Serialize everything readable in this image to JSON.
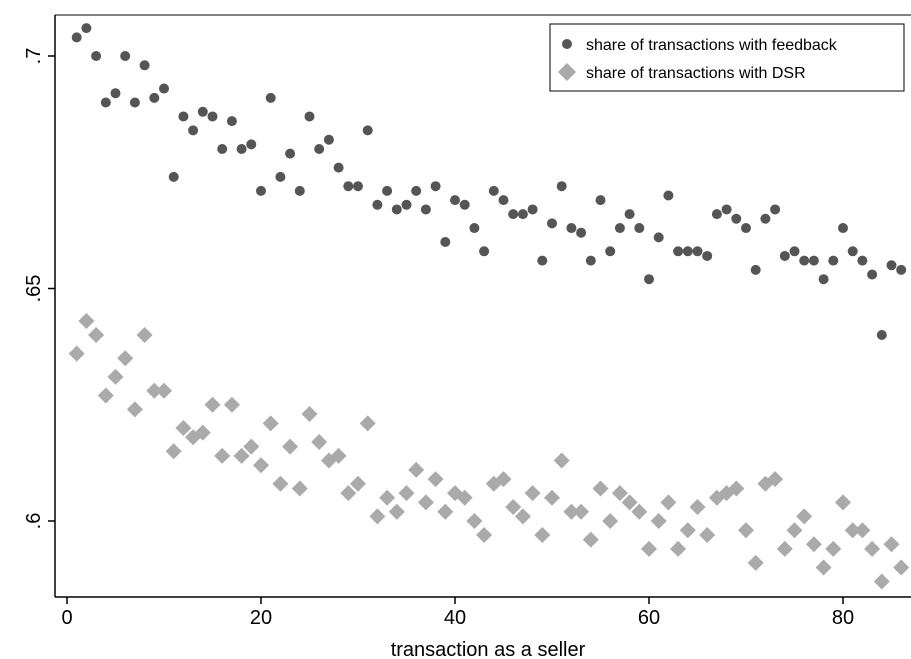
{
  "chart_data": {
    "type": "scatter",
    "title": "",
    "xlabel": "transaction as a seller",
    "ylabel": "",
    "xlim": [
      -1.5,
      86
    ],
    "ylim": [
      0.5835,
      0.7155
    ],
    "x_ticks": [
      0,
      20,
      40,
      60,
      80
    ],
    "x_tick_labels": [
      "0",
      "20",
      "40",
      "60",
      "80"
    ],
    "y_ticks": [
      0.6,
      0.65,
      0.7
    ],
    "y_tick_labels": [
      ".6",
      ".65",
      ".7"
    ],
    "grid": false,
    "legend_position": "top-right",
    "series": [
      {
        "name": "share of transactions with feedback",
        "marker": "circle",
        "color": "#555555",
        "x": [
          1,
          2,
          3,
          4,
          5,
          6,
          7,
          8,
          9,
          10,
          11,
          12,
          13,
          14,
          15,
          16,
          17,
          18,
          19,
          20,
          21,
          22,
          23,
          24,
          25,
          26,
          27,
          28,
          29,
          30,
          31,
          32,
          33,
          34,
          35,
          36,
          37,
          38,
          39,
          40,
          41,
          42,
          43,
          44,
          45,
          46,
          47,
          48,
          49,
          50,
          51,
          52,
          53,
          54,
          55,
          56,
          57,
          58,
          59,
          60,
          61,
          62,
          63,
          64,
          65,
          66,
          67,
          68,
          69,
          70,
          71,
          72,
          73,
          74,
          75,
          76,
          77,
          78,
          79,
          80,
          81,
          82,
          83,
          84,
          85,
          86
        ],
        "y": [
          0.704,
          0.706,
          0.7,
          0.69,
          0.692,
          0.7,
          0.69,
          0.698,
          0.691,
          0.693,
          0.674,
          0.687,
          0.684,
          0.688,
          0.687,
          0.68,
          0.686,
          0.68,
          0.681,
          0.671,
          0.691,
          0.674,
          0.679,
          0.671,
          0.687,
          0.68,
          0.682,
          0.676,
          0.672,
          0.672,
          0.684,
          0.668,
          0.671,
          0.667,
          0.668,
          0.671,
          0.667,
          0.672,
          0.66,
          0.669,
          0.668,
          0.663,
          0.658,
          0.671,
          0.669,
          0.666,
          0.666,
          0.667,
          0.656,
          0.664,
          0.672,
          0.663,
          0.662,
          0.656,
          0.669,
          0.658,
          0.663,
          0.666,
          0.663,
          0.652,
          0.661,
          0.67,
          0.658,
          0.658,
          0.658,
          0.657,
          0.666,
          0.667,
          0.665,
          0.663,
          0.654,
          0.665,
          0.667,
          0.657,
          0.658,
          0.656,
          0.656,
          0.652,
          0.656,
          0.663,
          0.658,
          0.656,
          0.653,
          0.64,
          0.655,
          0.654
        ]
      },
      {
        "name": "share of transactions with DSR",
        "marker": "diamond",
        "color": "#aaaaaa",
        "x": [
          1,
          2,
          3,
          4,
          5,
          6,
          7,
          8,
          9,
          10,
          11,
          12,
          13,
          14,
          15,
          16,
          17,
          18,
          19,
          20,
          21,
          22,
          23,
          24,
          25,
          26,
          27,
          28,
          29,
          30,
          31,
          32,
          33,
          34,
          35,
          36,
          37,
          38,
          39,
          40,
          41,
          42,
          43,
          44,
          45,
          46,
          47,
          48,
          49,
          50,
          51,
          52,
          53,
          54,
          55,
          56,
          57,
          58,
          59,
          60,
          61,
          62,
          63,
          64,
          65,
          66,
          67,
          68,
          69,
          70,
          71,
          72,
          73,
          74,
          75,
          76,
          77,
          78,
          79,
          80,
          81,
          82,
          83,
          84,
          85,
          86
        ],
        "y": [
          0.636,
          0.643,
          0.64,
          0.627,
          0.631,
          0.635,
          0.624,
          0.64,
          0.628,
          0.628,
          0.615,
          0.62,
          0.618,
          0.619,
          0.625,
          0.614,
          0.625,
          0.614,
          0.616,
          0.612,
          0.621,
          0.608,
          0.616,
          0.607,
          0.623,
          0.617,
          0.613,
          0.614,
          0.606,
          0.608,
          0.621,
          0.601,
          0.605,
          0.602,
          0.606,
          0.611,
          0.604,
          0.609,
          0.602,
          0.606,
          0.605,
          0.6,
          0.597,
          0.608,
          0.609,
          0.603,
          0.601,
          0.606,
          0.597,
          0.605,
          0.613,
          0.602,
          0.602,
          0.596,
          0.607,
          0.6,
          0.606,
          0.604,
          0.602,
          0.594,
          0.6,
          0.604,
          0.594,
          0.598,
          0.603,
          0.597,
          0.605,
          0.606,
          0.607,
          0.598,
          0.591,
          0.608,
          0.609,
          0.594,
          0.598,
          0.601,
          0.595,
          0.59,
          0.594,
          0.604,
          0.598,
          0.598,
          0.594,
          0.587,
          0.595,
          0.59
        ]
      }
    ]
  }
}
